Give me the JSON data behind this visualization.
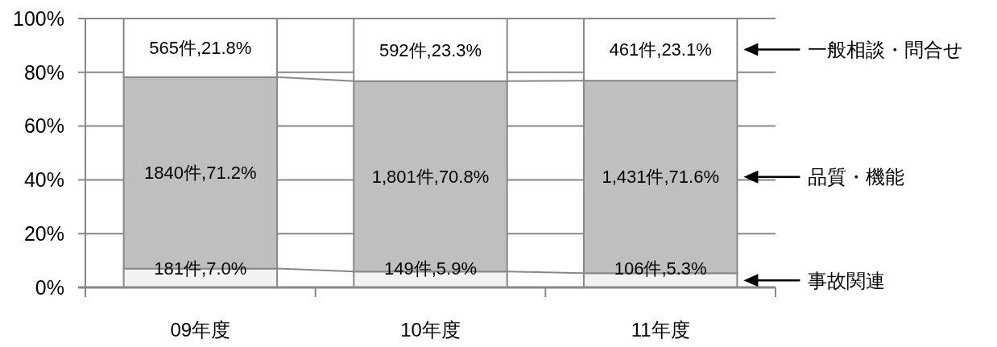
{
  "chart_data": {
    "type": "bar",
    "stacked": true,
    "categories": [
      "09年度",
      "10年度",
      "11年度"
    ],
    "series": [
      {
        "name": "事故関連",
        "color": "#f2f2f2",
        "values": [
          7.0,
          5.9,
          5.3
        ],
        "value_labels": [
          "181件,7.0%",
          "149件,5.9%",
          "106件,5.3%"
        ]
      },
      {
        "name": "品質・機能",
        "color": "#bfbfbf",
        "values": [
          71.2,
          70.8,
          71.6
        ],
        "value_labels": [
          "1840件,71.2%",
          "1,801件,70.8%",
          "1,431件,71.6%"
        ]
      },
      {
        "name": "一般相談・問合せ",
        "color": "#ffffff",
        "values": [
          21.8,
          23.3,
          23.1
        ],
        "value_labels": [
          "565件,21.8%",
          "592件,23.3%",
          "461件,23.1%"
        ]
      }
    ],
    "ylim": [
      0,
      100
    ],
    "yticks": [
      {
        "value": 0,
        "label": "0%"
      },
      {
        "value": 20,
        "label": "20%"
      },
      {
        "value": 40,
        "label": "40%"
      },
      {
        "value": 60,
        "label": "60%"
      },
      {
        "value": 80,
        "label": "80%"
      },
      {
        "value": 100,
        "label": "100%"
      }
    ],
    "grid": "y"
  }
}
